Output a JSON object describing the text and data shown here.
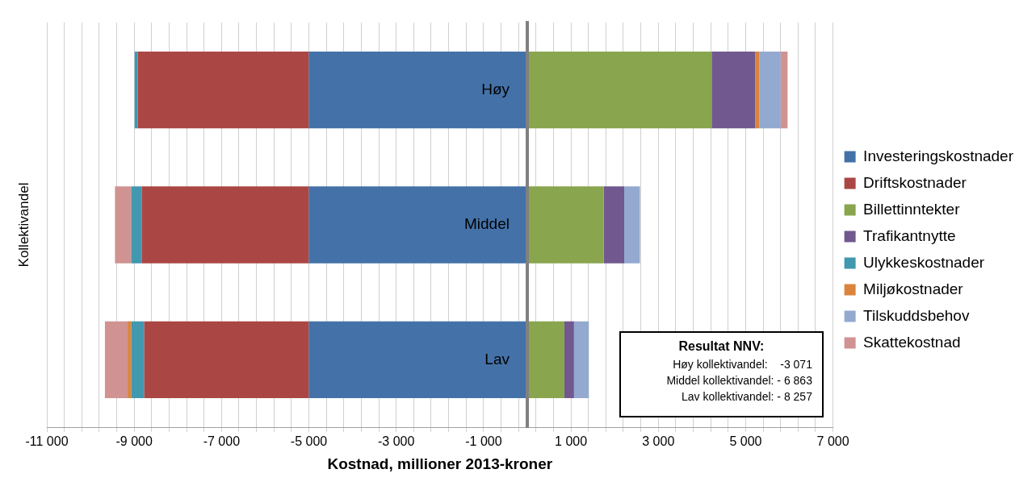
{
  "chart_data": {
    "type": "bar",
    "orientation": "horizontal",
    "stacked": true,
    "xlabel": "Kostnad, millioner 2013-kroner",
    "ylabel": "Kollektivandel",
    "categories": [
      "Høy",
      "Middel",
      "Lav"
    ],
    "series": [
      {
        "name": "Investeringskostnader",
        "color": "#4472a8",
        "values": [
          -5000,
          -5000,
          -5000
        ]
      },
      {
        "name": "Driftskostnader",
        "color": "#aa4744",
        "values": [
          -3920,
          -3830,
          -3770
        ]
      },
      {
        "name": "Billettinntekter",
        "color": "#89a54e",
        "values": [
          4220,
          1750,
          850
        ]
      },
      {
        "name": "Trafikantnytte",
        "color": "#71588f",
        "values": [
          1000,
          470,
          220
        ]
      },
      {
        "name": "Ulykkeskostnader",
        "color": "#4198af",
        "values": [
          -70,
          -240,
          -300
        ]
      },
      {
        "name": "Miljøkostnader",
        "color": "#db843d",
        "values": [
          90,
          0,
          -80
        ]
      },
      {
        "name": "Tilskuddsbehov",
        "color": "#93a9d0",
        "values": [
          490,
          360,
          340
        ]
      },
      {
        "name": "Skattekostnad",
        "color": "#d09392",
        "values": [
          160,
          -370,
          -520
        ]
      }
    ],
    "xlim": [
      -11000,
      7000
    ],
    "xticks": [
      {
        "value": -11000,
        "label": "-11 000"
      },
      {
        "value": -10600,
        "label": null
      },
      {
        "value": -10200,
        "label": null
      },
      {
        "value": -9800,
        "label": null
      },
      {
        "value": -9400,
        "label": null
      },
      {
        "value": -9000,
        "label": "-9 000"
      },
      {
        "value": -8600,
        "label": null
      },
      {
        "value": -8200,
        "label": null
      },
      {
        "value": -7800,
        "label": null
      },
      {
        "value": -7400,
        "label": null
      },
      {
        "value": -7000,
        "label": "-7 000"
      },
      {
        "value": -6600,
        "label": null
      },
      {
        "value": -6200,
        "label": null
      },
      {
        "value": -5800,
        "label": null
      },
      {
        "value": -5400,
        "label": null
      },
      {
        "value": -5000,
        "label": "-5 000"
      },
      {
        "value": -4600,
        "label": null
      },
      {
        "value": -4200,
        "label": null
      },
      {
        "value": -3800,
        "label": null
      },
      {
        "value": -3400,
        "label": null
      },
      {
        "value": -3000,
        "label": "-3 000"
      },
      {
        "value": -2600,
        "label": null
      },
      {
        "value": -2200,
        "label": null
      },
      {
        "value": -1800,
        "label": null
      },
      {
        "value": -1400,
        "label": null
      },
      {
        "value": -1000,
        "label": "-1 000"
      },
      {
        "value": -600,
        "label": null
      },
      {
        "value": -200,
        "label": null
      },
      {
        "value": 200,
        "label": null
      },
      {
        "value": 600,
        "label": null
      },
      {
        "value": 1000,
        "label": "1 000"
      },
      {
        "value": 1400,
        "label": null
      },
      {
        "value": 1800,
        "label": null
      },
      {
        "value": 2200,
        "label": null
      },
      {
        "value": 2600,
        "label": null
      },
      {
        "value": 3000,
        "label": "3 000"
      },
      {
        "value": 3400,
        "label": null
      },
      {
        "value": 3800,
        "label": null
      },
      {
        "value": 4200,
        "label": null
      },
      {
        "value": 4600,
        "label": null
      },
      {
        "value": 5000,
        "label": "5 000"
      },
      {
        "value": 5400,
        "label": null
      },
      {
        "value": 5800,
        "label": null
      },
      {
        "value": 6200,
        "label": null
      },
      {
        "value": 6600,
        "label": null
      },
      {
        "value": 7000,
        "label": "7 000"
      }
    ],
    "grid": "x",
    "legend": "right",
    "annotations": [
      "Resultat NNV:",
      "Høy kollektivandel:    -3 071",
      "Middel kollektivandel: - 6 863",
      "Lav kollektivandel: - 8 257"
    ]
  }
}
